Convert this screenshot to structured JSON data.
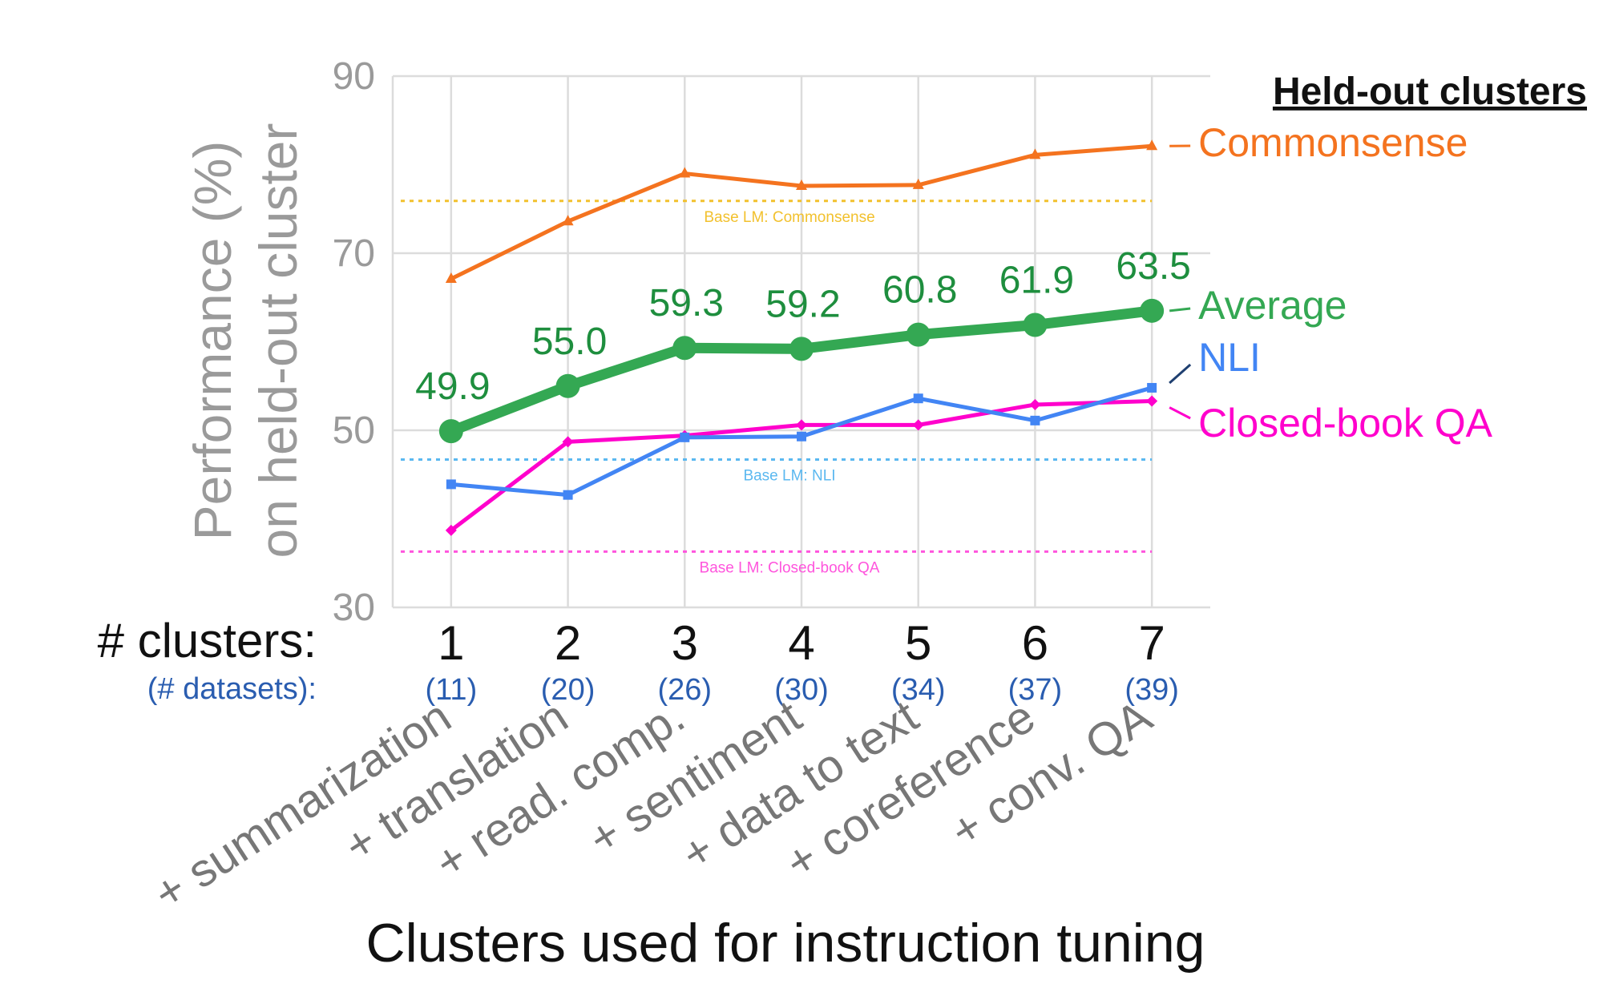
{
  "chart_data": {
    "type": "line",
    "x": [
      1,
      2,
      3,
      4,
      5,
      6,
      7
    ],
    "datasets_counts": [
      "(11)",
      "(20)",
      "(26)",
      "(30)",
      "(34)",
      "(37)",
      "(39)"
    ],
    "categories": [
      "+ summarization",
      "+ translation",
      "+ read. comp.",
      "+ sentiment",
      "+ data to text",
      "+ coreference",
      "+ conv. QA"
    ],
    "row_label_clusters": "# clusters:",
    "row_label_datasets": "(# datasets):",
    "xlabel": "Clusters used for instruction tuning",
    "ylabel_line1": "Performance (%)",
    "ylabel_line2": "on held-out cluster",
    "ylim": [
      30,
      90
    ],
    "yticks": [
      30,
      50,
      70,
      90
    ],
    "ytick_labels": [
      "30",
      "50",
      "70",
      "90"
    ],
    "grid": true,
    "legend_title": "Held-out clusters",
    "legend_placement": "right",
    "series": [
      {
        "name": "Commonsense",
        "values": [
          67.1,
          73.6,
          79.0,
          77.6,
          77.7,
          81.1,
          82.1
        ],
        "color": "#f4731f",
        "marker": "triangle"
      },
      {
        "name": "Average",
        "values": [
          49.9,
          55.0,
          59.3,
          59.2,
          60.8,
          61.9,
          63.5
        ],
        "color": "#34a853",
        "marker": "circle",
        "data_labels": [
          "49.9",
          "55.0",
          "59.3",
          "59.2",
          "60.8",
          "61.9",
          "63.5"
        ]
      },
      {
        "name": "NLI",
        "values": [
          43.9,
          42.7,
          49.2,
          49.3,
          53.6,
          51.1,
          54.8
        ],
        "color": "#4285f4",
        "marker": "square"
      },
      {
        "name": "Closed-book QA",
        "values": [
          38.7,
          48.7,
          49.4,
          50.6,
          50.6,
          52.9,
          53.3
        ],
        "color": "#ff00cc",
        "marker": "diamond"
      }
    ],
    "baselines": [
      {
        "label": "Base LM: Commonsense",
        "value": 75.9,
        "color": "#f2c12e"
      },
      {
        "label": "Base LM: NLI",
        "value": 46.7,
        "color": "#5bb8f0"
      },
      {
        "label": "Base LM: Closed-book QA",
        "value": 36.3,
        "color": "#ff55dd"
      }
    ]
  }
}
